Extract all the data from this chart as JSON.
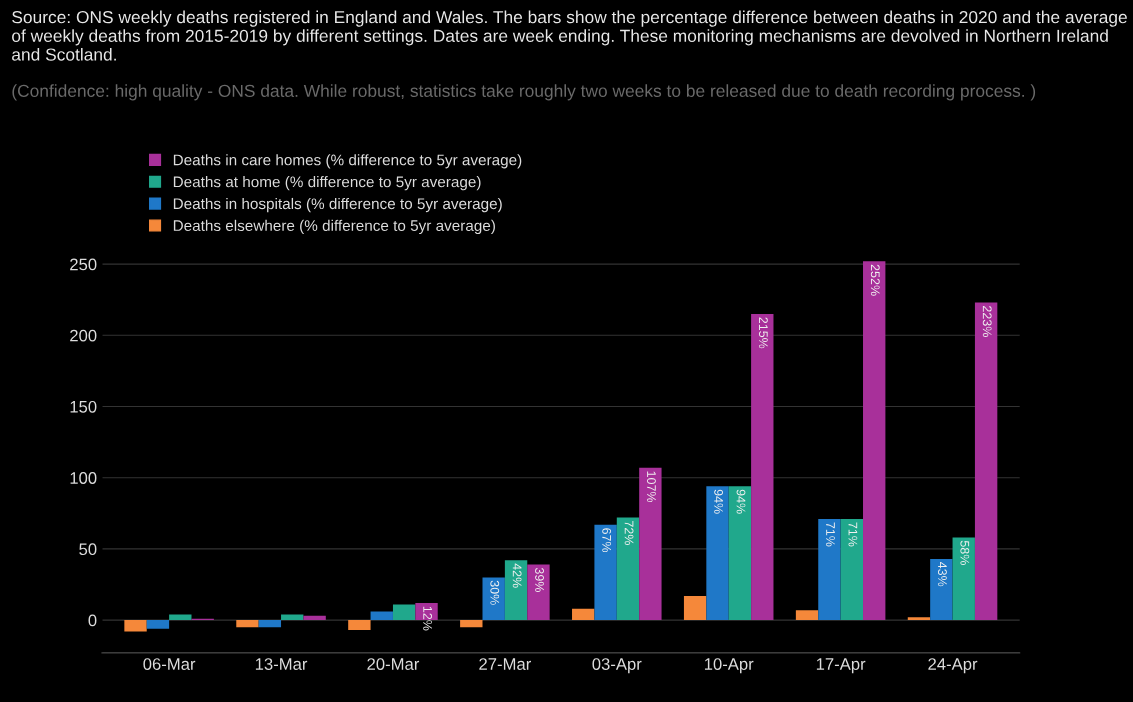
{
  "chart_data": {
    "type": "bar",
    "annotations": [
      "Source: ONS weekly deaths registered in England and Wales. The bars show the percentage difference between deaths in 2020 and the average of weekly deaths from 2015-2019 by different settings. Dates are week ending. These monitoring mechanisms are devolved in Northern Ireland and Scotland.",
      "(Confidence: high quality - ONS data. While robust, statistics take roughly two weeks to be released due to death recording process. )"
    ],
    "categories": [
      "06-Mar",
      "13-Mar",
      "20-Mar",
      "27-Mar",
      "03-Apr",
      "10-Apr",
      "17-Apr",
      "24-Apr"
    ],
    "series": [
      {
        "name": "Deaths elsewhere (% difference to 5yr average)",
        "color": "#f5883a",
        "values": [
          -8,
          -5,
          -7,
          -5,
          8,
          17,
          7,
          2
        ]
      },
      {
        "name": "Deaths in hospitals (% difference to 5yr average)",
        "color": "#1f78c8",
        "values": [
          -6,
          -5,
          6,
          30,
          67,
          94,
          71,
          43
        ],
        "value_labels": [
          null,
          null,
          null,
          "30%",
          "67%",
          "94%",
          "71%",
          "43%"
        ]
      },
      {
        "name": "Deaths at home (% difference to 5yr average)",
        "color": "#20a88c",
        "values": [
          4,
          4,
          11,
          42,
          72,
          94,
          71,
          58
        ],
        "value_labels": [
          null,
          null,
          null,
          "42%",
          "72%",
          "94%",
          "71%",
          "58%"
        ]
      },
      {
        "name": "Deaths in care homes (% difference to 5yr average)",
        "color": "#a8309a",
        "values": [
          1,
          3,
          12,
          39,
          107,
          215,
          252,
          223
        ],
        "value_labels": [
          null,
          null,
          "12%",
          "39%",
          "107%",
          "215%",
          "252%",
          "223%"
        ]
      }
    ],
    "ylim": [
      -23,
      258
    ],
    "yticks": [
      0,
      50,
      100,
      150,
      200,
      250
    ],
    "grid": "y",
    "legend": "top left"
  }
}
